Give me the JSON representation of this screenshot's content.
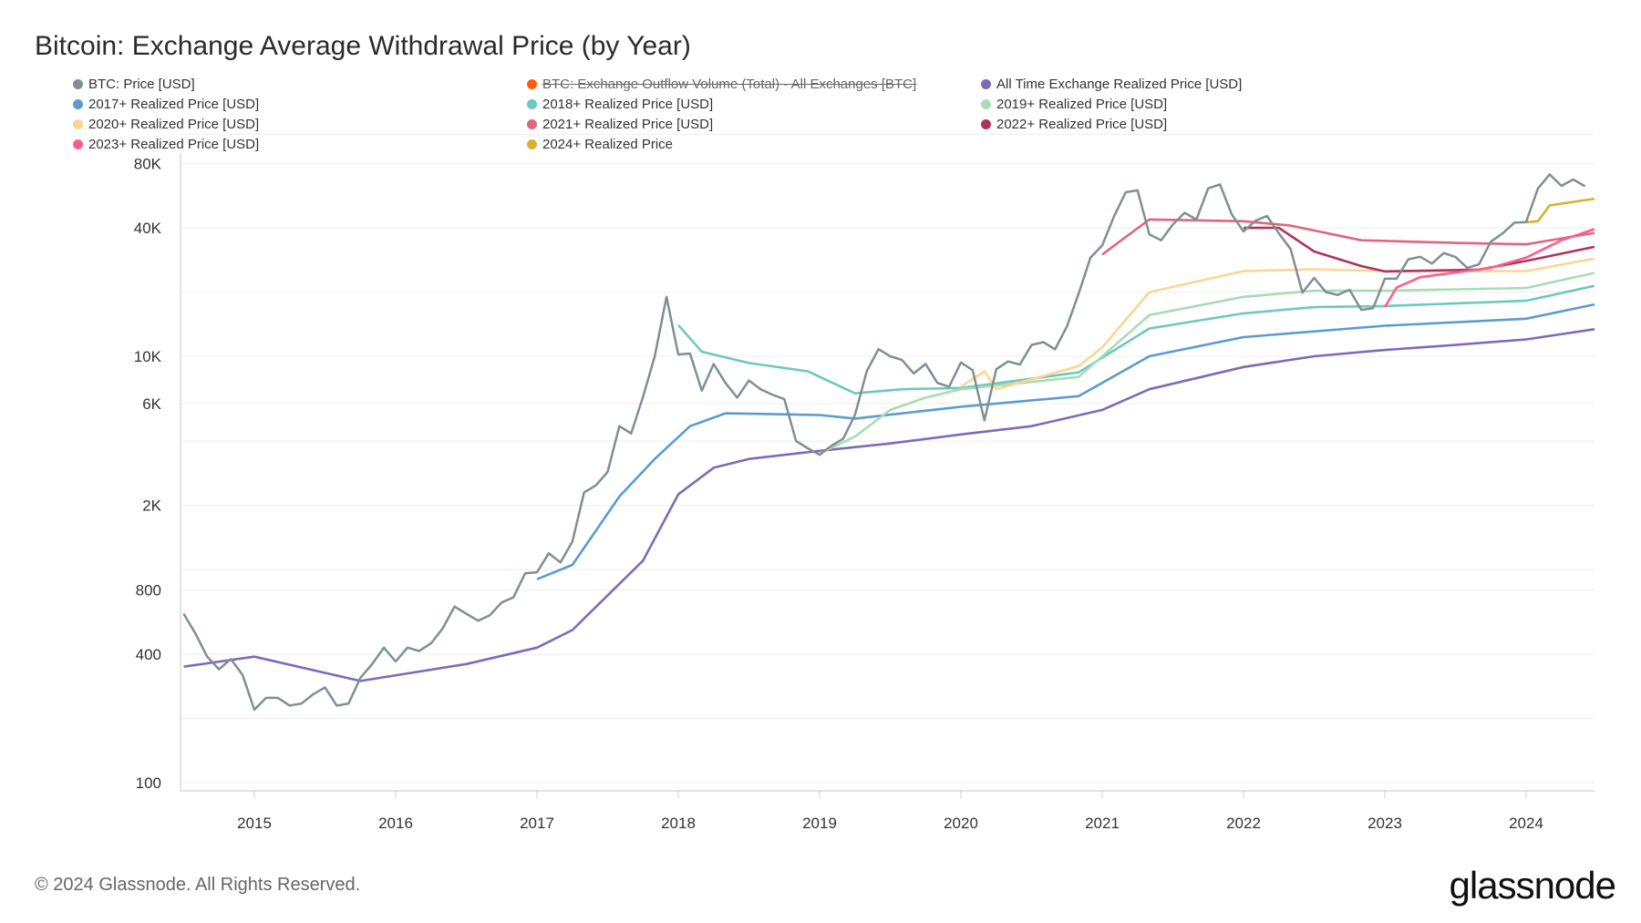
{
  "chart_data": {
    "type": "line",
    "title": "Bitcoin: Exchange Average Withdrawal Price (by Year)",
    "y_scale": "log",
    "ylim": [
      100,
      110000
    ],
    "xlim": [
      "2014-07",
      "2024-07"
    ],
    "grid": true,
    "legend_placement": "top-left",
    "y_ticks": [
      {
        "v": 100,
        "label": "100"
      },
      {
        "v": 400,
        "label": "400"
      },
      {
        "v": 800,
        "label": "800"
      },
      {
        "v": 2000,
        "label": "2K"
      },
      {
        "v": 6000,
        "label": "6K"
      },
      {
        "v": 10000,
        "label": "10K"
      },
      {
        "v": 40000,
        "label": "40K"
      },
      {
        "v": 80000,
        "label": "80K"
      }
    ],
    "x_ticks": [
      "2015",
      "2016",
      "2017",
      "2018",
      "2019",
      "2020",
      "2021",
      "2022",
      "2023",
      "2024"
    ],
    "series": [
      {
        "name": "BTC: Price [USD]",
        "color": "#7f8f93",
        "visible": true,
        "points": [
          [
            "2014-07",
            620
          ],
          [
            "2014-08",
            500
          ],
          [
            "2014-09",
            390
          ],
          [
            "2014-10",
            340
          ],
          [
            "2014-11",
            380
          ],
          [
            "2014-12",
            320
          ],
          [
            "2015-01",
            220
          ],
          [
            "2015-02",
            250
          ],
          [
            "2015-03",
            250
          ],
          [
            "2015-04",
            230
          ],
          [
            "2015-05",
            235
          ],
          [
            "2015-06",
            260
          ],
          [
            "2015-07",
            280
          ],
          [
            "2015-08",
            230
          ],
          [
            "2015-09",
            235
          ],
          [
            "2015-10",
            310
          ],
          [
            "2015-11",
            360
          ],
          [
            "2015-12",
            430
          ],
          [
            "2016-01",
            370
          ],
          [
            "2016-02",
            430
          ],
          [
            "2016-03",
            415
          ],
          [
            "2016-04",
            450
          ],
          [
            "2016-05",
            530
          ],
          [
            "2016-06",
            670
          ],
          [
            "2016-07",
            620
          ],
          [
            "2016-08",
            575
          ],
          [
            "2016-09",
            610
          ],
          [
            "2016-10",
            700
          ],
          [
            "2016-11",
            740
          ],
          [
            "2016-12",
            960
          ],
          [
            "2017-01",
            970
          ],
          [
            "2017-02",
            1190
          ],
          [
            "2017-03",
            1080
          ],
          [
            "2017-04",
            1350
          ],
          [
            "2017-05",
            2300
          ],
          [
            "2017-06",
            2480
          ],
          [
            "2017-07",
            2870
          ],
          [
            "2017-08",
            4700
          ],
          [
            "2017-09",
            4340
          ],
          [
            "2017-10",
            6450
          ],
          [
            "2017-11",
            10000
          ],
          [
            "2017-12",
            19000
          ],
          [
            "2018-01",
            10200
          ],
          [
            "2018-02",
            10300
          ],
          [
            "2018-03",
            6900
          ],
          [
            "2018-04",
            9200
          ],
          [
            "2018-05",
            7500
          ],
          [
            "2018-06",
            6400
          ],
          [
            "2018-07",
            7700
          ],
          [
            "2018-08",
            7000
          ],
          [
            "2018-09",
            6600
          ],
          [
            "2018-10",
            6300
          ],
          [
            "2018-11",
            4000
          ],
          [
            "2018-12",
            3700
          ],
          [
            "2019-01",
            3450
          ],
          [
            "2019-02",
            3800
          ],
          [
            "2019-03",
            4100
          ],
          [
            "2019-04",
            5300
          ],
          [
            "2019-05",
            8500
          ],
          [
            "2019-06",
            10800
          ],
          [
            "2019-07",
            10000
          ],
          [
            "2019-08",
            9600
          ],
          [
            "2019-09",
            8300
          ],
          [
            "2019-10",
            9200
          ],
          [
            "2019-11",
            7500
          ],
          [
            "2019-12",
            7200
          ],
          [
            "2020-01",
            9350
          ],
          [
            "2020-02",
            8600
          ],
          [
            "2020-03",
            5000
          ],
          [
            "2020-04",
            8700
          ],
          [
            "2020-05",
            9450
          ],
          [
            "2020-06",
            9140
          ],
          [
            "2020-07",
            11300
          ],
          [
            "2020-08",
            11650
          ],
          [
            "2020-09",
            10780
          ],
          [
            "2020-10",
            13800
          ],
          [
            "2020-11",
            19700
          ],
          [
            "2020-12",
            29000
          ],
          [
            "2021-01",
            33100
          ],
          [
            "2021-02",
            45200
          ],
          [
            "2021-03",
            58800
          ],
          [
            "2021-04",
            60000
          ],
          [
            "2021-05",
            37300
          ],
          [
            "2021-06",
            35000
          ],
          [
            "2021-07",
            41500
          ],
          [
            "2021-08",
            47100
          ],
          [
            "2021-09",
            43800
          ],
          [
            "2021-10",
            61300
          ],
          [
            "2021-11",
            64000
          ],
          [
            "2021-12",
            46300
          ],
          [
            "2022-01",
            38500
          ],
          [
            "2022-02",
            43200
          ],
          [
            "2022-03",
            45500
          ],
          [
            "2022-04",
            37700
          ],
          [
            "2022-05",
            31800
          ],
          [
            "2022-06",
            19900
          ],
          [
            "2022-07",
            23300
          ],
          [
            "2022-08",
            20000
          ],
          [
            "2022-09",
            19400
          ],
          [
            "2022-10",
            20500
          ],
          [
            "2022-11",
            16500
          ],
          [
            "2022-12",
            16800
          ],
          [
            "2023-01",
            23100
          ],
          [
            "2023-02",
            23100
          ],
          [
            "2023-03",
            28500
          ],
          [
            "2023-04",
            29300
          ],
          [
            "2023-05",
            27200
          ],
          [
            "2023-06",
            30500
          ],
          [
            "2023-07",
            29200
          ],
          [
            "2023-08",
            26000
          ],
          [
            "2023-09",
            27000
          ],
          [
            "2023-10",
            34500
          ],
          [
            "2023-11",
            37700
          ],
          [
            "2023-12",
            42300
          ],
          [
            "2024-01",
            42600
          ],
          [
            "2024-02",
            61200
          ],
          [
            "2024-03",
            71300
          ],
          [
            "2024-04",
            63000
          ],
          [
            "2024-05",
            67500
          ],
          [
            "2024-06",
            62700
          ]
        ]
      },
      {
        "name": "BTC: Exchange Outflow Volume (Total) - All Exchanges [BTC]",
        "color": "#ff5a0a",
        "visible": false,
        "points": []
      },
      {
        "name": "All Time Exchange Realized Price [USD]",
        "color": "#7e6bb8",
        "visible": true,
        "points": [
          [
            "2014-07",
            350
          ],
          [
            "2015-01",
            390
          ],
          [
            "2015-10",
            300
          ],
          [
            "2016-07",
            360
          ],
          [
            "2017-01",
            430
          ],
          [
            "2017-04",
            520
          ],
          [
            "2017-10",
            1100
          ],
          [
            "2018-01",
            2250
          ],
          [
            "2018-04",
            3000
          ],
          [
            "2018-07",
            3300
          ],
          [
            "2019-01",
            3600
          ],
          [
            "2019-07",
            3900
          ],
          [
            "2020-01",
            4300
          ],
          [
            "2020-07",
            4700
          ],
          [
            "2021-01",
            5600
          ],
          [
            "2021-05",
            7000
          ],
          [
            "2022-01",
            8900
          ],
          [
            "2022-07",
            10000
          ],
          [
            "2023-01",
            10700
          ],
          [
            "2023-07",
            11300
          ],
          [
            "2024-01",
            12000
          ],
          [
            "2024-07",
            13400
          ]
        ]
      },
      {
        "name": "2017+ Realized Price [USD]",
        "color": "#5b9bd0",
        "visible": true,
        "points": [
          [
            "2017-01",
            900
          ],
          [
            "2017-04",
            1050
          ],
          [
            "2017-08",
            2200
          ],
          [
            "2017-11",
            3300
          ],
          [
            "2018-02",
            4700
          ],
          [
            "2018-05",
            5400
          ],
          [
            "2019-01",
            5300
          ],
          [
            "2019-04",
            5100
          ],
          [
            "2020-01",
            5800
          ],
          [
            "2020-11",
            6500
          ],
          [
            "2021-05",
            10000
          ],
          [
            "2022-01",
            12300
          ],
          [
            "2023-01",
            13900
          ],
          [
            "2024-01",
            15000
          ],
          [
            "2024-07",
            17500
          ]
        ]
      },
      {
        "name": "2018+ Realized Price [USD]",
        "color": "#6cc9bd",
        "visible": true,
        "points": [
          [
            "2018-01",
            14000
          ],
          [
            "2018-03",
            10500
          ],
          [
            "2018-07",
            9300
          ],
          [
            "2018-12",
            8500
          ],
          [
            "2019-04",
            6700
          ],
          [
            "2019-08",
            7000
          ],
          [
            "2020-01",
            7100
          ],
          [
            "2020-11",
            8400
          ],
          [
            "2021-05",
            13500
          ],
          [
            "2022-01",
            15900
          ],
          [
            "2022-07",
            17000
          ],
          [
            "2023-01",
            17200
          ],
          [
            "2024-01",
            18200
          ],
          [
            "2024-07",
            21400
          ]
        ]
      },
      {
        "name": "2019+ Realized Price [USD]",
        "color": "#a8dcb4",
        "visible": true,
        "points": [
          [
            "2019-01",
            3500
          ],
          [
            "2019-04",
            4200
          ],
          [
            "2019-07",
            5600
          ],
          [
            "2019-10",
            6400
          ],
          [
            "2020-01",
            7000
          ],
          [
            "2020-11",
            8000
          ],
          [
            "2021-05",
            15600
          ],
          [
            "2022-01",
            19000
          ],
          [
            "2022-07",
            20300
          ],
          [
            "2023-01",
            20300
          ],
          [
            "2024-01",
            20900
          ],
          [
            "2024-07",
            24600
          ]
        ]
      },
      {
        "name": "2020+ Realized Price [USD]",
        "color": "#fdd592",
        "visible": true,
        "points": [
          [
            "2020-01",
            7200
          ],
          [
            "2020-03",
            8500
          ],
          [
            "2020-04",
            7000
          ],
          [
            "2020-11",
            9000
          ],
          [
            "2021-01",
            11000
          ],
          [
            "2021-05",
            20000
          ],
          [
            "2022-01",
            25100
          ],
          [
            "2022-07",
            25600
          ],
          [
            "2023-01",
            25100
          ],
          [
            "2024-01",
            25100
          ],
          [
            "2024-07",
            28700
          ]
        ]
      },
      {
        "name": "2021+ Realized Price [USD]",
        "color": "#e0667a",
        "visible": true,
        "points": [
          [
            "2021-01",
            30000
          ],
          [
            "2021-02",
            33000
          ],
          [
            "2021-05",
            43800
          ],
          [
            "2022-01",
            43000
          ],
          [
            "2022-05",
            41000
          ],
          [
            "2022-11",
            35000
          ],
          [
            "2023-07",
            34000
          ],
          [
            "2024-01",
            33500
          ],
          [
            "2024-07",
            37900
          ]
        ]
      },
      {
        "name": "2022+ Realized Price [USD]",
        "color": "#b0325f",
        "visible": true,
        "points": [
          [
            "2022-01",
            40000
          ],
          [
            "2022-04",
            40000
          ],
          [
            "2022-07",
            31000
          ],
          [
            "2022-11",
            26500
          ],
          [
            "2023-01",
            25000
          ],
          [
            "2023-09",
            25500
          ],
          [
            "2024-01",
            28000
          ],
          [
            "2024-07",
            32600
          ]
        ]
      },
      {
        "name": "2023+ Realized Price [USD]",
        "color": "#ff5c8f",
        "visible": true,
        "points": [
          [
            "2023-01",
            17000
          ],
          [
            "2023-02",
            21000
          ],
          [
            "2023-04",
            23500
          ],
          [
            "2023-10",
            26000
          ],
          [
            "2024-01",
            29000
          ],
          [
            "2024-04",
            35000
          ],
          [
            "2024-07",
            39500
          ]
        ]
      },
      {
        "name": "2024+ Realized Price",
        "color": "#d9b12c",
        "visible": true,
        "points": [
          [
            "2024-01",
            42500
          ],
          [
            "2024-02",
            43000
          ],
          [
            "2024-03",
            51000
          ],
          [
            "2024-07",
            54800
          ]
        ]
      }
    ]
  },
  "footer": "© 2024 Glassnode. All Rights Reserved.",
  "logo": "glassnode"
}
